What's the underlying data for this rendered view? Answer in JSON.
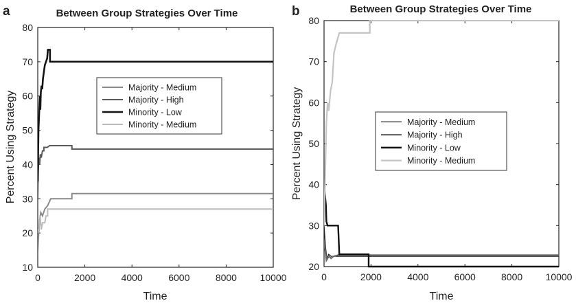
{
  "chart_data": [
    {
      "panel": "a",
      "type": "line",
      "title": "Between Group Strategies Over Time",
      "xlabel": "Time",
      "ylabel": "Percent Using Strategy",
      "xlim": [
        0,
        10000
      ],
      "ylim": [
        10,
        80
      ],
      "xticks": [
        0,
        2000,
        4000,
        6000,
        8000,
        10000
      ],
      "yticks": [
        10,
        20,
        30,
        40,
        50,
        60,
        70,
        80
      ],
      "legend_position": "center-right",
      "series": [
        {
          "name": "Majority - Medium",
          "color": "#8a8a8a",
          "width": 2,
          "points": [
            [
              0,
              14
            ],
            [
              40,
              20
            ],
            [
              80,
              24
            ],
            [
              130,
              26
            ],
            [
              200,
              25
            ],
            [
              300,
              27
            ],
            [
              420,
              28
            ],
            [
              550,
              30
            ],
            [
              1000,
              30
            ],
            [
              1450,
              30
            ],
            [
              1450,
              31.5
            ],
            [
              10000,
              31.5
            ]
          ]
        },
        {
          "name": "Majority - High",
          "color": "#5a5a5a",
          "width": 2,
          "points": [
            [
              0,
              30
            ],
            [
              20,
              38
            ],
            [
              50,
              42
            ],
            [
              80,
              40
            ],
            [
              110,
              43
            ],
            [
              150,
              42
            ],
            [
              200,
              44
            ],
            [
              260,
              44
            ],
            [
              260,
              45
            ],
            [
              400,
              45
            ],
            [
              500,
              45.5
            ],
            [
              1450,
              45.5
            ],
            [
              1450,
              44.5
            ],
            [
              10000,
              44.5
            ]
          ]
        },
        {
          "name": "Minority - Low",
          "color": "#141414",
          "width": 2.6,
          "points": [
            [
              0,
              35
            ],
            [
              30,
              50
            ],
            [
              60,
              55
            ],
            [
              90,
              60
            ],
            [
              110,
              56
            ],
            [
              130,
              61
            ],
            [
              160,
              63
            ],
            [
              190,
              62
            ],
            [
              220,
              65
            ],
            [
              260,
              67
            ],
            [
              300,
              69
            ],
            [
              350,
              70
            ],
            [
              400,
              71
            ],
            [
              430,
              73.5
            ],
            [
              520,
              73.5
            ],
            [
              520,
              70
            ],
            [
              10000,
              70
            ]
          ]
        },
        {
          "name": "Minority - Medium",
          "color": "#bcbcbc",
          "width": 2,
          "points": [
            [
              0,
              20
            ],
            [
              60,
              22
            ],
            [
              100,
              25
            ],
            [
              150,
              21
            ],
            [
              200,
              23
            ],
            [
              300,
              23
            ],
            [
              350,
              25
            ],
            [
              420,
              25
            ],
            [
              420,
              27
            ],
            [
              10000,
              27
            ]
          ]
        }
      ]
    },
    {
      "panel": "b",
      "type": "line",
      "title": "Between Group Strategies Over Time",
      "xlabel": "Time",
      "ylabel": "Percent Using Strategy",
      "xlim": [
        0,
        10000
      ],
      "ylim": [
        20,
        80
      ],
      "xticks": [
        0,
        2000,
        4000,
        6000,
        8000,
        10000
      ],
      "yticks": [
        20,
        30,
        40,
        50,
        60,
        70,
        80
      ],
      "legend_position": "center-right",
      "series": [
        {
          "name": "Majority - Medium",
          "color": "#1e1e1e",
          "width": 1.3,
          "points": [
            [
              0,
              30
            ],
            [
              60,
              25
            ],
            [
              100,
              23
            ],
            [
              150,
              22
            ],
            [
              200,
              23
            ],
            [
              300,
              22.5
            ],
            [
              500,
              22.5
            ],
            [
              10000,
              22.5
            ]
          ]
        },
        {
          "name": "Majority - High",
          "color": "#6a6a6a",
          "width": 2.2,
          "points": [
            [
              0,
              26
            ],
            [
              50,
              24
            ],
            [
              100,
              21.5
            ],
            [
              150,
              22
            ],
            [
              200,
              22.5
            ],
            [
              300,
              22
            ],
            [
              400,
              22.5
            ],
            [
              600,
              22.8
            ],
            [
              10000,
              22.8
            ]
          ]
        },
        {
          "name": "Minority - Low",
          "color": "#101010",
          "width": 2.4,
          "points": [
            [
              0,
              40
            ],
            [
              80,
              35
            ],
            [
              100,
              31
            ],
            [
              150,
              30
            ],
            [
              600,
              30
            ],
            [
              650,
              23
            ],
            [
              1900,
              23
            ],
            [
              1900,
              20
            ],
            [
              10000,
              20
            ]
          ]
        },
        {
          "name": "Minority - Medium",
          "color": "#c4c4c4",
          "width": 2.2,
          "points": [
            [
              0,
              30
            ],
            [
              60,
              45
            ],
            [
              100,
              55
            ],
            [
              150,
              60
            ],
            [
              200,
              58
            ],
            [
              280,
              63
            ],
            [
              350,
              65
            ],
            [
              420,
              72
            ],
            [
              500,
              74
            ],
            [
              650,
              77
            ],
            [
              1950,
              77
            ],
            [
              1950,
              80
            ],
            [
              10000,
              80
            ]
          ]
        }
      ]
    }
  ],
  "labels": {
    "panel_a": "a",
    "panel_b": "b"
  }
}
